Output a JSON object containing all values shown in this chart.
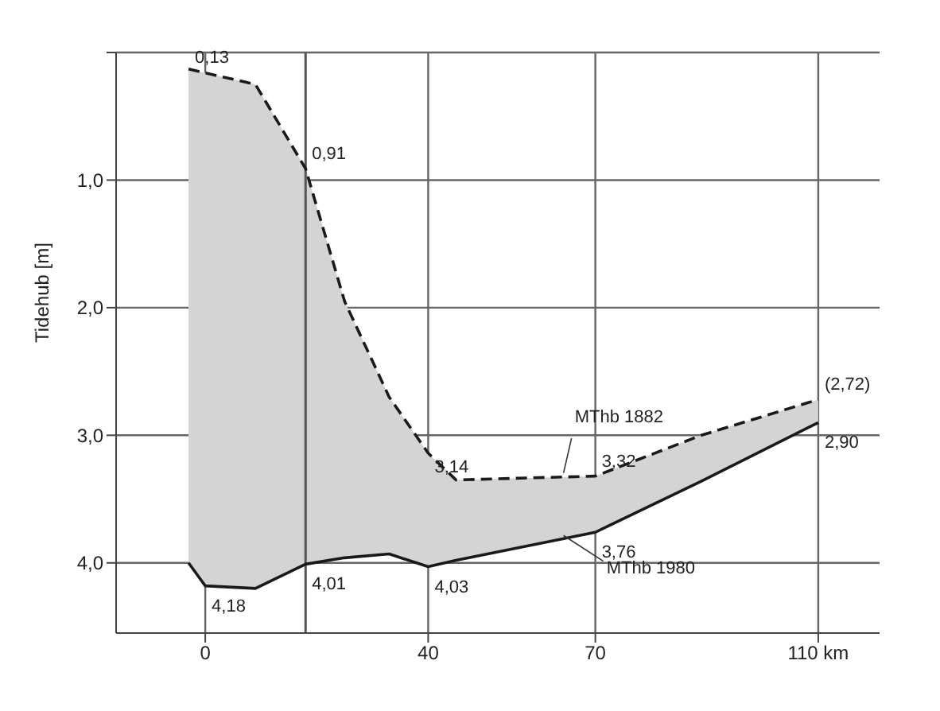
{
  "chart_data": {
    "type": "line",
    "ylabel": "Tidehub [m]",
    "x": [
      -3,
      0,
      9,
      18,
      25,
      33,
      40,
      45,
      70,
      89,
      110
    ],
    "series": [
      {
        "name": "MThb 1882",
        "color": "#1a1a1a",
        "line_style": "dashed",
        "values": [
          0.13,
          0.16,
          0.25,
          0.91,
          1.95,
          2.7,
          3.14,
          3.35,
          3.32,
          3.0,
          2.72
        ],
        "value_labels": [
          "0,13",
          null,
          null,
          "0,91",
          null,
          null,
          "3,14",
          null,
          "3,32",
          null,
          "(2,72)"
        ],
        "lower": [
          0.13,
          0.16,
          0.25,
          0.91,
          1.95,
          2.7,
          3.14,
          3.35,
          3.32,
          3.0,
          2.72
        ],
        "upper": [
          4.0,
          4.18,
          4.2,
          4.01,
          3.96,
          3.93,
          4.03,
          3.98,
          3.76,
          3.36,
          2.9
        ]
      },
      {
        "name": "MThb 1980",
        "color": "#1a1a1a",
        "line_style": "solid",
        "values": [
          4.0,
          4.18,
          4.2,
          4.01,
          3.96,
          3.93,
          4.03,
          3.98,
          3.76,
          3.36,
          2.9
        ],
        "value_labels": [
          null,
          "4,18",
          null,
          "4,01",
          null,
          null,
          "4,03",
          null,
          "3,76",
          null,
          "2,90"
        ]
      }
    ],
    "xlim": [
      -16,
      121
    ],
    "xticks": [
      0,
      40,
      70,
      {
        "value": 110,
        "label": "110 km"
      }
    ],
    "ylim": [
      4.55,
      0
    ],
    "yticks": [
      {
        "value": 0,
        "label": null
      },
      {
        "value": 1,
        "label": "1,0"
      },
      {
        "value": 2,
        "label": "2,0"
      },
      {
        "value": 3,
        "label": "3,0"
      },
      {
        "value": 4,
        "label": "4,0"
      }
    ],
    "ref_lines": [
      {
        "axis": "x",
        "value": 18,
        "color": "#555555"
      }
    ],
    "grid": true,
    "marker": "none"
  }
}
